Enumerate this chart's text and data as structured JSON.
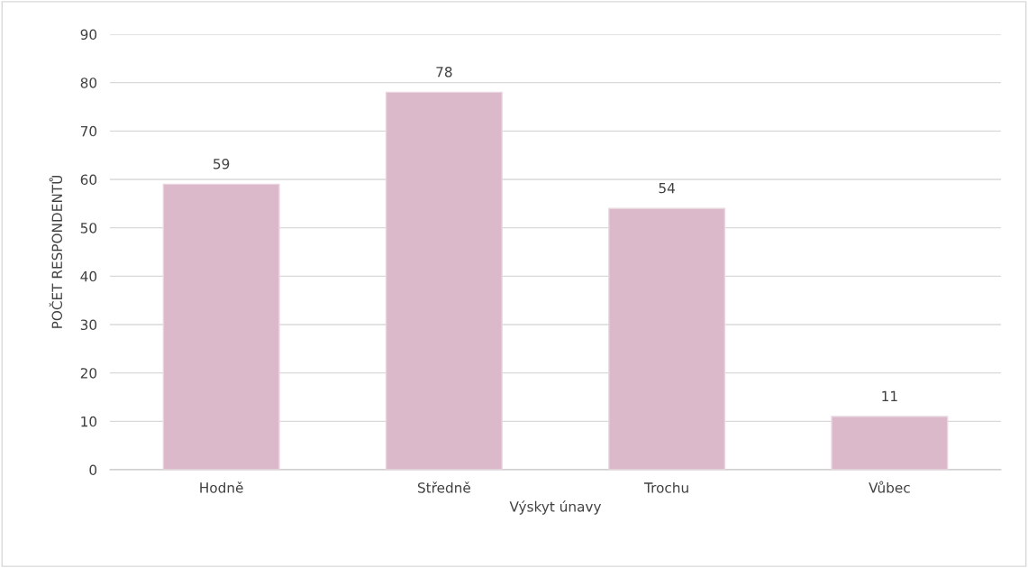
{
  "chart_data": {
    "type": "bar",
    "xlabel": "Výskyt únavy",
    "ylabel": "POČET RESPONDENTŮ",
    "categories": [
      "Hodně",
      "Středně",
      "Trochu",
      "Vůbec"
    ],
    "values": [
      59,
      78,
      54,
      11
    ],
    "color": "#dbb9ca",
    "ylim": [
      0,
      90
    ],
    "yticks": [
      0,
      10,
      20,
      30,
      40,
      50,
      60,
      70,
      80,
      90
    ],
    "grid": "y",
    "data_labels": true
  }
}
